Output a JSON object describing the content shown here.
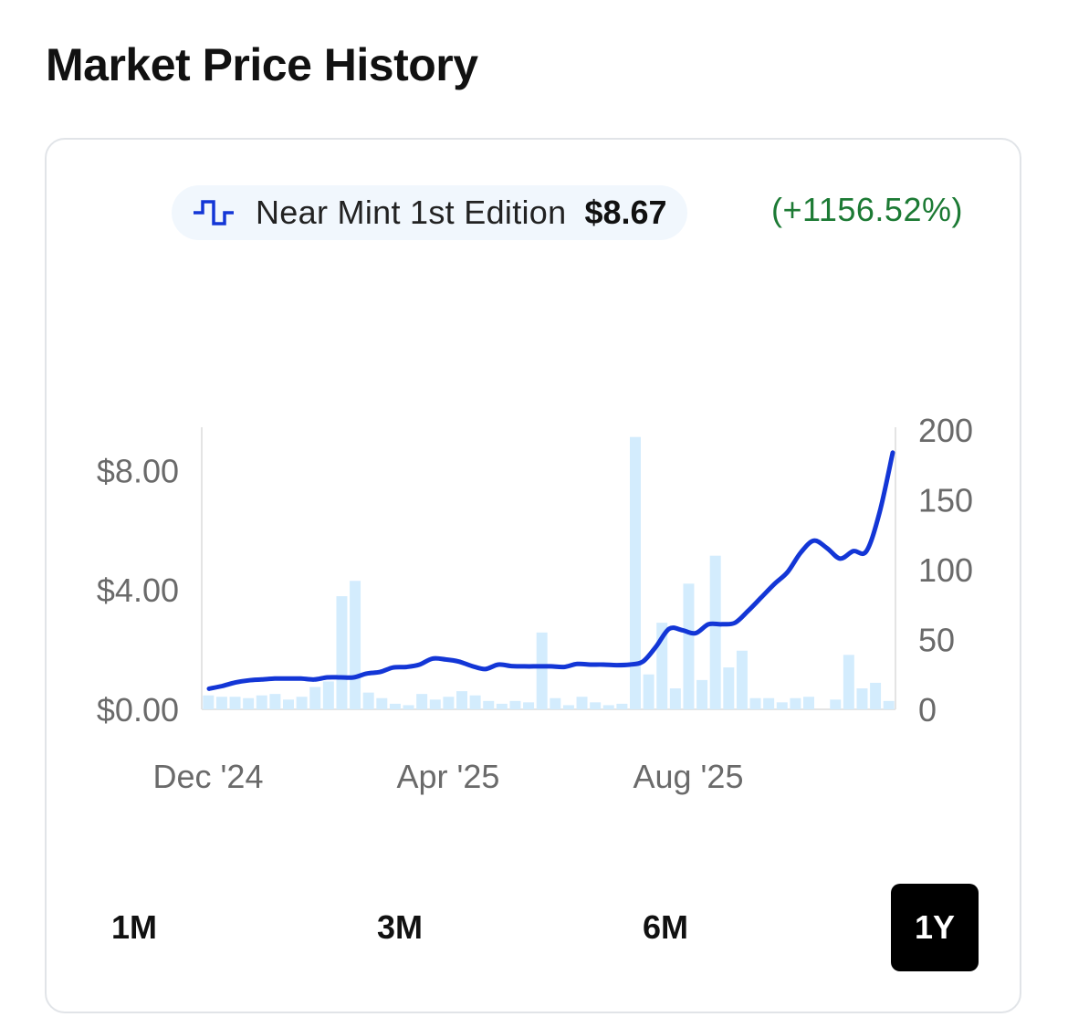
{
  "title": "Market Price History",
  "legend": {
    "label": "Near Mint 1st Edition",
    "value": "$8.67",
    "change": "(+1156.52%)"
  },
  "range_buttons": [
    {
      "label": "1M",
      "active": false
    },
    {
      "label": "3M",
      "active": false
    },
    {
      "label": "6M",
      "active": false
    },
    {
      "label": "1Y",
      "active": true
    }
  ],
  "colors": {
    "price_line": "#1336d6",
    "volume_bar": "#d3ecfd",
    "change_positive": "#1c7a34"
  },
  "chart_data": {
    "type": "line",
    "x_tick_labels": [
      "Dec '24",
      "Apr '25",
      "Aug '25"
    ],
    "y_left": {
      "ticks": [
        "$0.00",
        "$4.00",
        "$8.00"
      ],
      "ylim": [
        0,
        10
      ]
    },
    "y_right": {
      "ticks": [
        "0",
        "50",
        "100",
        "150",
        "200"
      ],
      "ylim": [
        0,
        200
      ]
    },
    "series": [
      {
        "name": "Near Mint 1st Edition",
        "axis": "left",
        "values": [
          0.69,
          0.78,
          0.9,
          0.97,
          1.0,
          1.03,
          1.03,
          1.03,
          1.0,
          1.07,
          1.07,
          1.07,
          1.2,
          1.25,
          1.4,
          1.42,
          1.5,
          1.7,
          1.67,
          1.6,
          1.45,
          1.35,
          1.5,
          1.45,
          1.44,
          1.44,
          1.44,
          1.42,
          1.52,
          1.5,
          1.5,
          1.48,
          1.5,
          1.6,
          2.1,
          2.7,
          2.65,
          2.55,
          2.85,
          2.85,
          2.9,
          3.3,
          3.75,
          4.2,
          4.6,
          5.25,
          5.65,
          5.4,
          5.05,
          5.3,
          5.3,
          6.6,
          8.6
        ]
      },
      {
        "name": "volume",
        "axis": "right",
        "values": [
          10,
          9,
          9,
          8,
          10,
          11,
          7,
          9,
          16,
          20,
          81,
          92,
          12,
          8,
          4,
          3,
          11,
          7,
          9,
          13,
          10,
          6,
          4,
          6,
          5,
          55,
          8,
          3,
          9,
          5,
          3,
          4,
          195,
          25,
          62,
          15,
          90,
          21,
          110,
          30,
          42,
          8,
          8,
          5,
          8,
          9,
          0,
          7,
          39,
          15,
          19,
          6
        ]
      }
    ]
  }
}
